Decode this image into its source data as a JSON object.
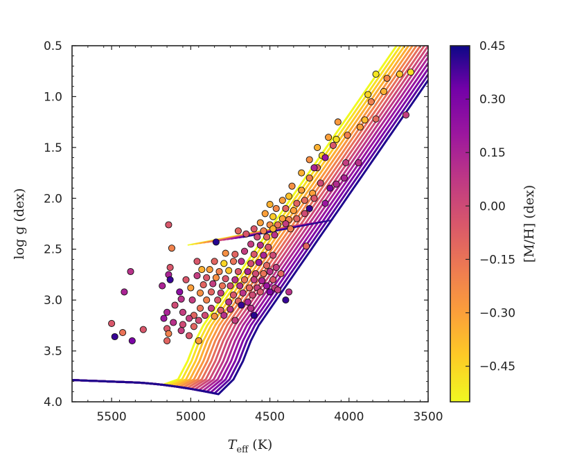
{
  "chart_data": {
    "type": "scatter",
    "title": "",
    "xlabel": "T_eff (K)",
    "xlabel_main": "T",
    "xlabel_sub": "eff",
    "xlabel_unit": "(K)",
    "ylabel": "log g (dex)",
    "xlim": [
      5750,
      3500
    ],
    "ylim": [
      4.0,
      0.5
    ],
    "x_ticks": [
      5500,
      5000,
      4500,
      4000,
      3500
    ],
    "x_tick_labels": [
      "5500",
      "5000",
      "4500",
      "4000",
      "3500"
    ],
    "y_ticks": [
      0.5,
      1.0,
      1.5,
      2.0,
      2.5,
      3.0,
      3.5,
      4.0
    ],
    "y_tick_labels": [
      "0.5",
      "1.0",
      "1.5",
      "2.0",
      "2.5",
      "3.0",
      "3.5",
      "4.0"
    ],
    "colorbar": {
      "label": "[M/H] (dex)",
      "range": [
        -0.55,
        0.45
      ],
      "ticks": [
        0.45,
        0.3,
        0.15,
        0.0,
        -0.15,
        -0.3,
        -0.45
      ],
      "tick_labels": [
        "0.45",
        "0.30",
        "0.15",
        "0.00",
        "−0.15",
        "−0.30",
        "−0.45"
      ],
      "colormap": "plasma_r"
    },
    "isochrones": [
      {
        "mh": -0.55,
        "rgb_temp": 5000
      },
      {
        "mh": -0.48,
        "rgb_temp": 4975
      },
      {
        "mh": -0.41,
        "rgb_temp": 4950
      },
      {
        "mh": -0.34,
        "rgb_temp": 4925
      },
      {
        "mh": -0.27,
        "rgb_temp": 4900
      },
      {
        "mh": -0.2,
        "rgb_temp": 4875
      },
      {
        "mh": -0.13,
        "rgb_temp": 4850
      },
      {
        "mh": -0.06,
        "rgb_temp": 4825
      },
      {
        "mh": 0.01,
        "rgb_temp": 4800
      },
      {
        "mh": 0.08,
        "rgb_temp": 4775
      },
      {
        "mh": 0.15,
        "rgb_temp": 4750
      },
      {
        "mh": 0.22,
        "rgb_temp": 4725
      },
      {
        "mh": 0.29,
        "rgb_temp": 4700
      },
      {
        "mh": 0.36,
        "rgb_temp": 4675
      },
      {
        "mh": 0.43,
        "rgb_temp": 4650
      }
    ],
    "points": [
      {
        "teff": 3830,
        "logg": 0.78,
        "mh": -0.5
      },
      {
        "teff": 3610,
        "logg": 0.76,
        "mh": -0.48
      },
      {
        "teff": 3680,
        "logg": 0.78,
        "mh": -0.4
      },
      {
        "teff": 3760,
        "logg": 0.82,
        "mh": -0.22
      },
      {
        "teff": 3780,
        "logg": 0.95,
        "mh": -0.35
      },
      {
        "teff": 3880,
        "logg": 0.98,
        "mh": -0.45
      },
      {
        "teff": 3860,
        "logg": 1.05,
        "mh": -0.2
      },
      {
        "teff": 3640,
        "logg": 1.18,
        "mh": 0.05
      },
      {
        "teff": 3830,
        "logg": 1.22,
        "mh": -0.12
      },
      {
        "teff": 3900,
        "logg": 1.23,
        "mh": -0.38
      },
      {
        "teff": 3930,
        "logg": 1.3,
        "mh": -0.3
      },
      {
        "teff": 4070,
        "logg": 1.25,
        "mh": -0.28
      },
      {
        "teff": 4080,
        "logg": 1.42,
        "mh": -0.48
      },
      {
        "teff": 4130,
        "logg": 1.4,
        "mh": -0.3
      },
      {
        "teff": 4010,
        "logg": 1.38,
        "mh": -0.2
      },
      {
        "teff": 4100,
        "logg": 1.48,
        "mh": -0.05
      },
      {
        "teff": 4200,
        "logg": 1.5,
        "mh": -0.35
      },
      {
        "teff": 4170,
        "logg": 1.58,
        "mh": -0.45
      },
      {
        "teff": 4250,
        "logg": 1.62,
        "mh": -0.25
      },
      {
        "teff": 4020,
        "logg": 1.65,
        "mh": 0.05
      },
      {
        "teff": 3940,
        "logg": 1.65,
        "mh": 0.1
      },
      {
        "teff": 4200,
        "logg": 1.7,
        "mh": -0.1
      },
      {
        "teff": 4300,
        "logg": 1.75,
        "mh": -0.35
      },
      {
        "teff": 4250,
        "logg": 1.8,
        "mh": -0.2
      },
      {
        "teff": 4180,
        "logg": 1.85,
        "mh": 0.0
      },
      {
        "teff": 4120,
        "logg": 1.9,
        "mh": 0.3
      },
      {
        "teff": 4030,
        "logg": 1.8,
        "mh": 0.15
      },
      {
        "teff": 4080,
        "logg": 1.86,
        "mh": 0.12
      },
      {
        "teff": 4360,
        "logg": 1.88,
        "mh": -0.25
      },
      {
        "teff": 4300,
        "logg": 1.92,
        "mh": -0.3
      },
      {
        "teff": 4230,
        "logg": 1.95,
        "mh": -0.3
      },
      {
        "teff": 4380,
        "logg": 1.98,
        "mh": -0.4
      },
      {
        "teff": 4420,
        "logg": 2.02,
        "mh": -0.3
      },
      {
        "teff": 4280,
        "logg": 2.02,
        "mh": -0.12
      },
      {
        "teff": 4220,
        "logg": 2.0,
        "mh": -0.05
      },
      {
        "teff": 4150,
        "logg": 2.05,
        "mh": 0.2
      },
      {
        "teff": 4500,
        "logg": 2.06,
        "mh": -0.35
      },
      {
        "teff": 4460,
        "logg": 2.1,
        "mh": -0.22
      },
      {
        "teff": 4400,
        "logg": 2.1,
        "mh": -0.1
      },
      {
        "teff": 4350,
        "logg": 2.12,
        "mh": -0.3
      },
      {
        "teff": 4280,
        "logg": 2.15,
        "mh": 0.0
      },
      {
        "teff": 4250,
        "logg": 2.1,
        "mh": 0.4
      },
      {
        "teff": 4530,
        "logg": 2.15,
        "mh": -0.3
      },
      {
        "teff": 4480,
        "logg": 2.18,
        "mh": -0.42
      },
      {
        "teff": 4420,
        "logg": 2.2,
        "mh": -0.3
      },
      {
        "teff": 4380,
        "logg": 2.21,
        "mh": -0.2
      },
      {
        "teff": 4330,
        "logg": 2.2,
        "mh": -0.1
      },
      {
        "teff": 4560,
        "logg": 2.24,
        "mh": -0.3
      },
      {
        "teff": 4500,
        "logg": 2.26,
        "mh": -0.25
      },
      {
        "teff": 4450,
        "logg": 2.26,
        "mh": -0.15
      },
      {
        "teff": 4400,
        "logg": 2.25,
        "mh": 0.05
      },
      {
        "teff": 4600,
        "logg": 2.3,
        "mh": -0.05
      },
      {
        "teff": 4540,
        "logg": 2.32,
        "mh": -0.2
      },
      {
        "teff": 4480,
        "logg": 2.3,
        "mh": -0.35
      },
      {
        "teff": 4700,
        "logg": 2.32,
        "mh": -0.1
      },
      {
        "teff": 4650,
        "logg": 2.35,
        "mh": -0.05
      },
      {
        "teff": 4580,
        "logg": 2.38,
        "mh": 0.0
      },
      {
        "teff": 4520,
        "logg": 2.38,
        "mh": -0.1
      },
      {
        "teff": 4470,
        "logg": 2.36,
        "mh": 0.1
      },
      {
        "teff": 4840,
        "logg": 2.43,
        "mh": 0.42
      },
      {
        "teff": 4620,
        "logg": 2.45,
        "mh": 0.05
      },
      {
        "teff": 4560,
        "logg": 2.46,
        "mh": 0.1
      },
      {
        "teff": 4510,
        "logg": 2.48,
        "mh": -0.05
      },
      {
        "teff": 4270,
        "logg": 2.47,
        "mh": -0.1
      },
      {
        "teff": 4780,
        "logg": 2.54,
        "mh": -0.25
      },
      {
        "teff": 4720,
        "logg": 2.55,
        "mh": -0.1
      },
      {
        "teff": 4660,
        "logg": 2.52,
        "mh": 0.05
      },
      {
        "teff": 4600,
        "logg": 2.55,
        "mh": -0.05
      },
      {
        "teff": 4540,
        "logg": 2.56,
        "mh": 0.15
      },
      {
        "teff": 4480,
        "logg": 2.56,
        "mh": 0.0
      },
      {
        "teff": 4960,
        "logg": 2.62,
        "mh": -0.05
      },
      {
        "teff": 4850,
        "logg": 2.62,
        "mh": -0.1
      },
      {
        "teff": 4790,
        "logg": 2.64,
        "mh": -0.45
      },
      {
        "teff": 4730,
        "logg": 2.62,
        "mh": -0.15
      },
      {
        "teff": 4680,
        "logg": 2.62,
        "mh": 0.1
      },
      {
        "teff": 4620,
        "logg": 2.64,
        "mh": 0.0
      },
      {
        "teff": 4570,
        "logg": 2.63,
        "mh": 0.2
      },
      {
        "teff": 4520,
        "logg": 2.66,
        "mh": -0.1
      },
      {
        "teff": 4460,
        "logg": 2.68,
        "mh": 0.05
      },
      {
        "teff": 5130,
        "logg": 2.68,
        "mh": -0.05
      },
      {
        "teff": 4930,
        "logg": 2.7,
        "mh": -0.35
      },
      {
        "teff": 4880,
        "logg": 2.7,
        "mh": -0.3
      },
      {
        "teff": 4820,
        "logg": 2.72,
        "mh": -0.2
      },
      {
        "teff": 4760,
        "logg": 2.71,
        "mh": -0.4
      },
      {
        "teff": 4700,
        "logg": 2.72,
        "mh": -0.05
      },
      {
        "teff": 4640,
        "logg": 2.72,
        "mh": 0.15
      },
      {
        "teff": 4590,
        "logg": 2.74,
        "mh": 0.0
      },
      {
        "teff": 4540,
        "logg": 2.74,
        "mh": -0.15
      },
      {
        "teff": 4500,
        "logg": 2.72,
        "mh": 0.1
      },
      {
        "teff": 4430,
        "logg": 2.74,
        "mh": -0.1
      },
      {
        "teff": 5380,
        "logg": 2.72,
        "mh": 0.1
      },
      {
        "teff": 5140,
        "logg": 2.75,
        "mh": 0.15
      },
      {
        "teff": 4960,
        "logg": 2.76,
        "mh": 0.05
      },
      {
        "teff": 4900,
        "logg": 2.78,
        "mh": -0.05
      },
      {
        "teff": 4840,
        "logg": 2.78,
        "mh": -0.25
      },
      {
        "teff": 4780,
        "logg": 2.79,
        "mh": -0.05
      },
      {
        "teff": 4720,
        "logg": 2.8,
        "mh": 0.1
      },
      {
        "teff": 4660,
        "logg": 2.8,
        "mh": -0.15
      },
      {
        "teff": 4600,
        "logg": 2.8,
        "mh": 0.05
      },
      {
        "teff": 4550,
        "logg": 2.81,
        "mh": 0.15
      },
      {
        "teff": 4480,
        "logg": 2.8,
        "mh": -0.05
      },
      {
        "teff": 5130,
        "logg": 2.8,
        "mh": 0.4
      },
      {
        "teff": 5030,
        "logg": 2.8,
        "mh": -0.05
      },
      {
        "teff": 4920,
        "logg": 2.85,
        "mh": -0.1
      },
      {
        "teff": 4860,
        "logg": 2.84,
        "mh": 0.05
      },
      {
        "teff": 4800,
        "logg": 2.86,
        "mh": -0.15
      },
      {
        "teff": 4750,
        "logg": 2.86,
        "mh": 0.0
      },
      {
        "teff": 4690,
        "logg": 2.86,
        "mh": 0.1
      },
      {
        "teff": 4630,
        "logg": 2.88,
        "mh": -0.1
      },
      {
        "teff": 4580,
        "logg": 2.88,
        "mh": 0.05
      },
      {
        "teff": 4520,
        "logg": 2.86,
        "mh": 0.2
      },
      {
        "teff": 5180,
        "logg": 2.86,
        "mh": 0.15
      },
      {
        "teff": 5000,
        "logg": 2.88,
        "mh": -0.3
      },
      {
        "teff": 4470,
        "logg": 2.88,
        "mh": 0.05
      },
      {
        "teff": 5420,
        "logg": 2.92,
        "mh": 0.15
      },
      {
        "teff": 5070,
        "logg": 2.92,
        "mh": 0.25
      },
      {
        "teff": 4940,
        "logg": 2.93,
        "mh": -0.25
      },
      {
        "teff": 4870,
        "logg": 2.92,
        "mh": -0.1
      },
      {
        "teff": 4810,
        "logg": 2.93,
        "mh": 0.05
      },
      {
        "teff": 4730,
        "logg": 2.95,
        "mh": -0.05
      },
      {
        "teff": 4670,
        "logg": 2.93,
        "mh": 0.1
      },
      {
        "teff": 4610,
        "logg": 2.95,
        "mh": 0.0
      },
      {
        "teff": 4560,
        "logg": 2.92,
        "mh": -0.05
      },
      {
        "teff": 4500,
        "logg": 2.92,
        "mh": 0.3
      },
      {
        "teff": 4380,
        "logg": 2.92,
        "mh": 0.1
      },
      {
        "teff": 5060,
        "logg": 2.99,
        "mh": 0.1
      },
      {
        "teff": 4990,
        "logg": 3.0,
        "mh": 0.05
      },
      {
        "teff": 4900,
        "logg": 3.0,
        "mh": -0.2
      },
      {
        "teff": 4830,
        "logg": 3.0,
        "mh": -0.05
      },
      {
        "teff": 4760,
        "logg": 3.02,
        "mh": 0.1
      },
      {
        "teff": 4700,
        "logg": 3.01,
        "mh": -0.1
      },
      {
        "teff": 4640,
        "logg": 3.02,
        "mh": 0.15
      },
      {
        "teff": 5100,
        "logg": 3.05,
        "mh": 0.0
      },
      {
        "teff": 4940,
        "logg": 3.08,
        "mh": -0.15
      },
      {
        "teff": 4870,
        "logg": 3.08,
        "mh": 0.05
      },
      {
        "teff": 4810,
        "logg": 3.1,
        "mh": -0.05
      },
      {
        "teff": 4750,
        "logg": 3.09,
        "mh": 0.1
      },
      {
        "teff": 4680,
        "logg": 3.05,
        "mh": 0.4
      },
      {
        "teff": 4620,
        "logg": 3.08,
        "mh": 0.1
      },
      {
        "teff": 5150,
        "logg": 3.12,
        "mh": 0.15
      },
      {
        "teff": 5050,
        "logg": 3.12,
        "mh": 0.05
      },
      {
        "teff": 4980,
        "logg": 3.15,
        "mh": -0.1
      },
      {
        "teff": 4910,
        "logg": 3.15,
        "mh": 0.0
      },
      {
        "teff": 4850,
        "logg": 3.16,
        "mh": -0.25
      },
      {
        "teff": 4790,
        "logg": 3.15,
        "mh": 0.1
      },
      {
        "teff": 4600,
        "logg": 3.15,
        "mh": 0.42
      },
      {
        "teff": 5170,
        "logg": 3.18,
        "mh": 0.2
      },
      {
        "teff": 5010,
        "logg": 3.18,
        "mh": 0.05
      },
      {
        "teff": 4950,
        "logg": 3.2,
        "mh": 0.0
      },
      {
        "teff": 4720,
        "logg": 3.2,
        "mh": 0.05
      },
      {
        "teff": 5500,
        "logg": 3.23,
        "mh": -0.05
      },
      {
        "teff": 5110,
        "logg": 3.22,
        "mh": 0.1
      },
      {
        "teff": 5050,
        "logg": 3.24,
        "mh": 0.0
      },
      {
        "teff": 4980,
        "logg": 3.26,
        "mh": -0.1
      },
      {
        "teff": 5150,
        "logg": 3.28,
        "mh": -0.05
      },
      {
        "teff": 5300,
        "logg": 3.29,
        "mh": -0.05
      },
      {
        "teff": 5060,
        "logg": 3.3,
        "mh": 0.05
      },
      {
        "teff": 5430,
        "logg": 3.32,
        "mh": -0.15
      },
      {
        "teff": 5140,
        "logg": 3.33,
        "mh": -0.2
      },
      {
        "teff": 5010,
        "logg": 3.35,
        "mh": -0.05
      },
      {
        "teff": 5480,
        "logg": 3.36,
        "mh": 0.4
      },
      {
        "teff": 5370,
        "logg": 3.4,
        "mh": 0.3
      },
      {
        "teff": 5150,
        "logg": 3.4,
        "mh": -0.1
      },
      {
        "teff": 4950,
        "logg": 3.4,
        "mh": -0.3
      },
      {
        "teff": 5140,
        "logg": 2.26,
        "mh": -0.05
      },
      {
        "teff": 5120,
        "logg": 2.49,
        "mh": -0.2
      },
      {
        "teff": 4400,
        "logg": 3.0,
        "mh": 0.4
      },
      {
        "teff": 4450,
        "logg": 2.9,
        "mh": 0.05
      },
      {
        "teff": 4220,
        "logg": 1.7,
        "mh": 0.15
      },
      {
        "teff": 4370,
        "logg": 2.3,
        "mh": -0.2
      },
      {
        "teff": 4330,
        "logg": 2.05,
        "mh": -0.1
      },
      {
        "teff": 4150,
        "logg": 1.6,
        "mh": 0.2
      }
    ]
  }
}
